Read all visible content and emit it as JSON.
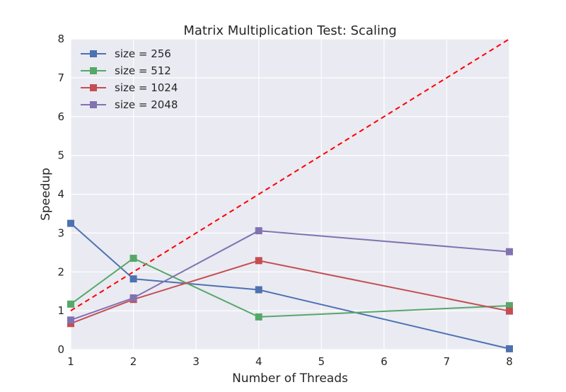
{
  "chart_data": {
    "type": "line",
    "title": "Matrix Multiplication Test: Scaling",
    "xlabel": "Number of Threads",
    "ylabel": "Speedup",
    "xlim": [
      1,
      8
    ],
    "ylim": [
      0,
      8
    ],
    "xticks": [
      1,
      2,
      3,
      4,
      5,
      6,
      7,
      8
    ],
    "yticks": [
      0,
      1,
      2,
      3,
      4,
      5,
      6,
      7,
      8
    ],
    "grid": true,
    "legend_position": "top-left",
    "x": [
      1,
      2,
      4,
      8
    ],
    "series": [
      {
        "name": "size = 256",
        "color": "#4C72B0",
        "marker": "square",
        "values": [
          3.25,
          1.82,
          1.54,
          0.02
        ]
      },
      {
        "name": "size = 512",
        "color": "#55A868",
        "marker": "square",
        "values": [
          1.17,
          2.35,
          0.84,
          1.13
        ]
      },
      {
        "name": "size = 1024",
        "color": "#C44E52",
        "marker": "square",
        "values": [
          0.67,
          1.29,
          2.29,
          0.99
        ]
      },
      {
        "name": "size = 2048",
        "color": "#8172B2",
        "marker": "square",
        "values": [
          0.76,
          1.33,
          3.06,
          2.52
        ]
      }
    ],
    "reference_line": {
      "style": "dashed",
      "color": "#FF0000",
      "x": [
        1,
        8
      ],
      "y": [
        1,
        8
      ]
    }
  }
}
